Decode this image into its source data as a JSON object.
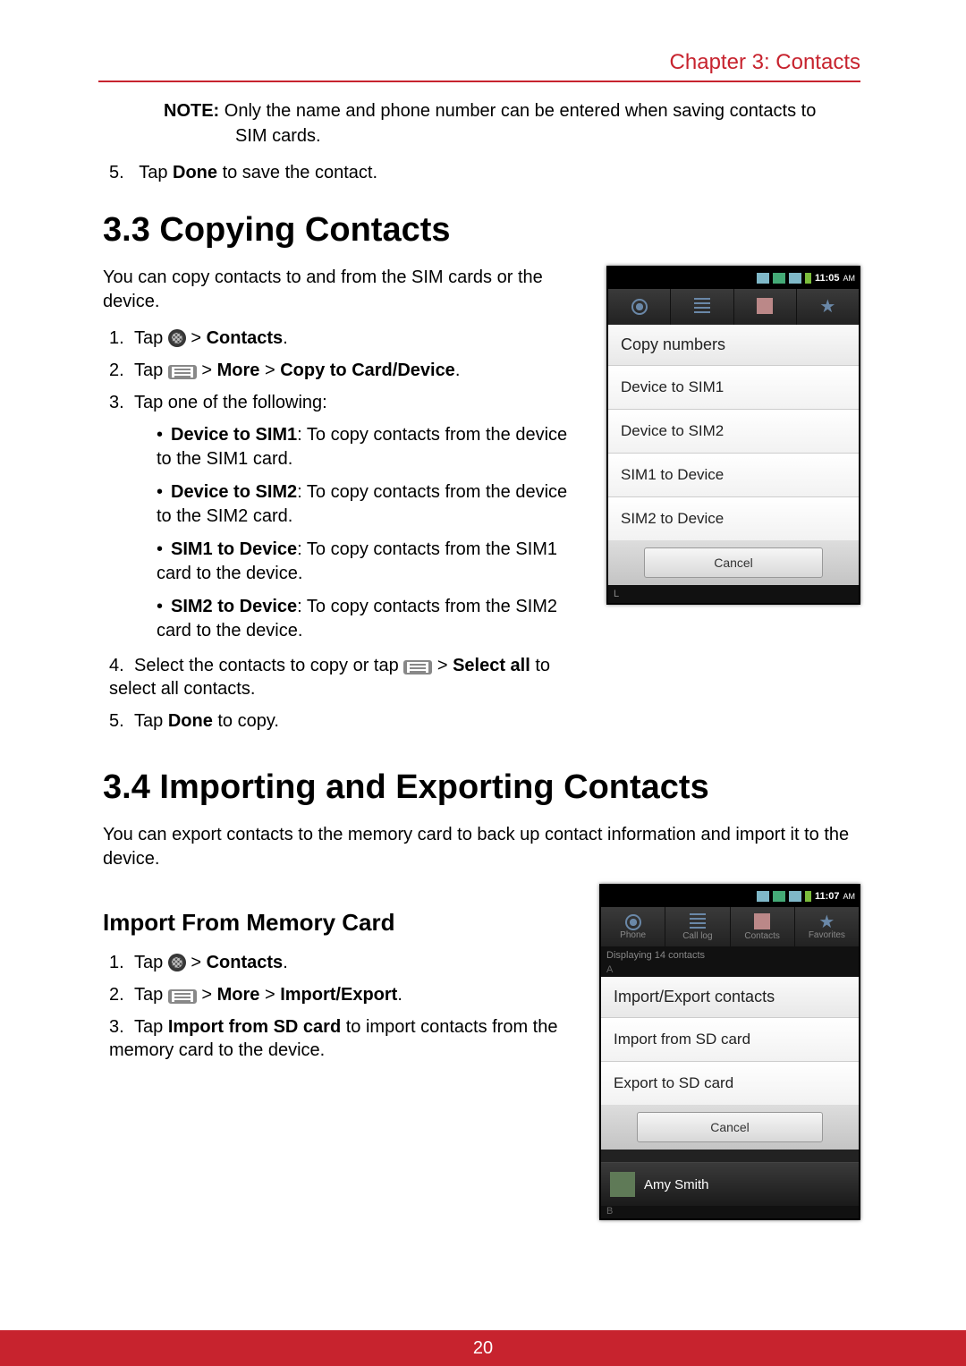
{
  "header": {
    "chapter": "Chapter 3: Contacts"
  },
  "note": {
    "label": "NOTE:",
    "text": "Only the name and phone number can be entered when saving contacts to",
    "text2": "SIM cards."
  },
  "step_top": {
    "num": "5.",
    "pre": "Tap ",
    "bold": "Done",
    "post": " to save the contact."
  },
  "section33": {
    "title": "3.3 Copying Contacts",
    "intro": "You can copy contacts to and from the SIM cards or the device.",
    "steps": [
      {
        "num": "1.",
        "segments": [
          "Tap ",
          "@APPS",
          "  > ",
          "@B:Contacts",
          "."
        ]
      },
      {
        "num": "2.",
        "segments": [
          "Tap ",
          "@MENU",
          " > ",
          "@B:More",
          " > ",
          "@B:Copy to Card/Device",
          "."
        ]
      },
      {
        "num": "3.",
        "segments": [
          "Tap one of the following:"
        ]
      }
    ],
    "subitems": [
      {
        "bold": "Device to SIM1",
        "text": ": To copy contacts from the device to the SIM1 card."
      },
      {
        "bold": "Device to SIM2",
        "text": ": To copy contacts from the device to the SIM2 card."
      },
      {
        "bold": "SIM1 to Device",
        "text": ": To copy contacts from the SIM1 card to the device."
      },
      {
        "bold": "SIM2 to Device",
        "text": ": To copy contacts from the SIM2 card to the device."
      }
    ],
    "steps2": [
      {
        "num": "4.",
        "segments": [
          "Select the contacts to copy or tap ",
          "@MENU",
          " > ",
          "@B:Select all",
          " to select all contacts."
        ]
      },
      {
        "num": "5.",
        "segments": [
          "Tap ",
          "@B:Done",
          " to copy."
        ]
      }
    ]
  },
  "section34": {
    "title": "3.4 Importing and Exporting Contacts",
    "intro": "You can export contacts to the memory card to back up contact information and import it to the device.",
    "subhead": "Import From Memory Card",
    "steps": [
      {
        "num": "1.",
        "segments": [
          "Tap ",
          "@APPS",
          "  > ",
          "@B:Contacts",
          "."
        ]
      },
      {
        "num": "2.",
        "segments": [
          "Tap ",
          "@MENU",
          " > ",
          "@B:More",
          " > ",
          "@B:Import/Export",
          "."
        ]
      },
      {
        "num": "3.",
        "segments": [
          "Tap ",
          "@B:Import from SD card",
          " to import contacts from the memory card to the device."
        ]
      }
    ]
  },
  "phone1": {
    "time": "11:05",
    "ampm": "AM",
    "dialog_title": "Copy numbers",
    "items": [
      "Device to SIM1",
      "Device to SIM2",
      "SIM1 to Device",
      "SIM2 to Device"
    ],
    "cancel": "Cancel",
    "bottom_letter": "L"
  },
  "phone2": {
    "time": "11:07",
    "ampm": "AM",
    "tabs": [
      "Phone",
      "Call log",
      "Contacts",
      "Favorites"
    ],
    "displaying": "Displaying 14 contacts",
    "dialog_title": "Import/Export contacts",
    "items": [
      "Import from SD card",
      "Export to SD card"
    ],
    "cancel": "Cancel",
    "contact_name": "Amy Smith",
    "letter_b": "B"
  },
  "footer": {
    "page": "20"
  },
  "colors": {
    "accent": "#c7232e",
    "text": "#000000",
    "footer_bg": "#c7232e"
  }
}
